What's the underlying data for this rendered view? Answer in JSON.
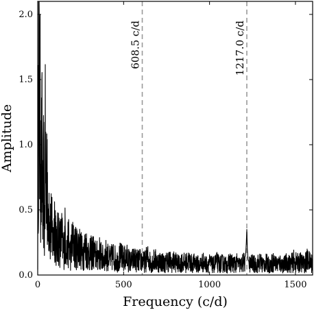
{
  "chart_data": {
    "type": "line",
    "xlabel": "Frequency (c/d)",
    "ylabel": "Amplitude",
    "xlim": [
      0,
      1600
    ],
    "ylim": [
      0.0,
      2.1
    ],
    "grid": false,
    "xticks": [
      0,
      500,
      1000,
      1500
    ],
    "xtick_labels": [
      "0",
      "500",
      "1000",
      "1500"
    ],
    "yticks": [
      0.0,
      0.5,
      1.0,
      1.5,
      2.0
    ],
    "ytick_labels": [
      "0.0",
      "0.5",
      "1.0",
      "1.5",
      "2.0"
    ],
    "series_color": "#000000",
    "annotation_color": "#999999",
    "annotations": [
      {
        "x": 608.5,
        "label": "608.5 c/d"
      },
      {
        "x": 1217.0,
        "label": "1217.0 c/d"
      }
    ],
    "series": [
      {
        "x": [
          0,
          4,
          8,
          12,
          16,
          20,
          25,
          30,
          35,
          40,
          45,
          50,
          55,
          60,
          65,
          70,
          80,
          90,
          100,
          110,
          120,
          130,
          140,
          150,
          160,
          170,
          180,
          190,
          200,
          220,
          240,
          260,
          280,
          300,
          320,
          340,
          360,
          380,
          400,
          420,
          440,
          460,
          480,
          500,
          520,
          540,
          560,
          580,
          600,
          620,
          640,
          660,
          680,
          700,
          720,
          740,
          760,
          780,
          800,
          820,
          840,
          860,
          880,
          900,
          920,
          940,
          960,
          980,
          1000,
          1020,
          1040,
          1060,
          1080,
          1100,
          1120,
          1140,
          1160,
          1180,
          1200,
          1210,
          1214,
          1217,
          1220,
          1224,
          1230,
          1250,
          1270,
          1290,
          1310,
          1330,
          1350,
          1370,
          1390,
          1410,
          1430,
          1450,
          1470,
          1490,
          1510,
          1530,
          1550,
          1570,
          1590,
          1600
        ],
        "y": [
          0.15,
          2.1,
          1.75,
          1.3,
          1.4,
          0.9,
          1.1,
          0.55,
          0.95,
          0.4,
          1.25,
          0.6,
          1.2,
          0.35,
          0.75,
          0.5,
          0.45,
          0.3,
          0.55,
          0.25,
          0.4,
          0.3,
          0.35,
          0.22,
          0.38,
          0.2,
          0.32,
          0.18,
          0.3,
          0.25,
          0.28,
          0.2,
          0.26,
          0.18,
          0.22,
          0.17,
          0.2,
          0.15,
          0.19,
          0.14,
          0.18,
          0.13,
          0.17,
          0.15,
          0.16,
          0.12,
          0.15,
          0.13,
          0.14,
          0.12,
          0.16,
          0.11,
          0.14,
          0.12,
          0.13,
          0.1,
          0.14,
          0.11,
          0.13,
          0.1,
          0.12,
          0.11,
          0.13,
          0.1,
          0.12,
          0.09,
          0.12,
          0.1,
          0.11,
          0.09,
          0.12,
          0.1,
          0.11,
          0.09,
          0.12,
          0.1,
          0.11,
          0.09,
          0.12,
          0.15,
          0.25,
          0.35,
          0.2,
          0.12,
          0.1,
          0.11,
          0.09,
          0.12,
          0.1,
          0.11,
          0.09,
          0.12,
          0.1,
          0.11,
          0.09,
          0.12,
          0.1,
          0.13,
          0.11,
          0.12,
          0.1,
          0.14,
          0.11,
          0.13
        ]
      }
    ]
  }
}
